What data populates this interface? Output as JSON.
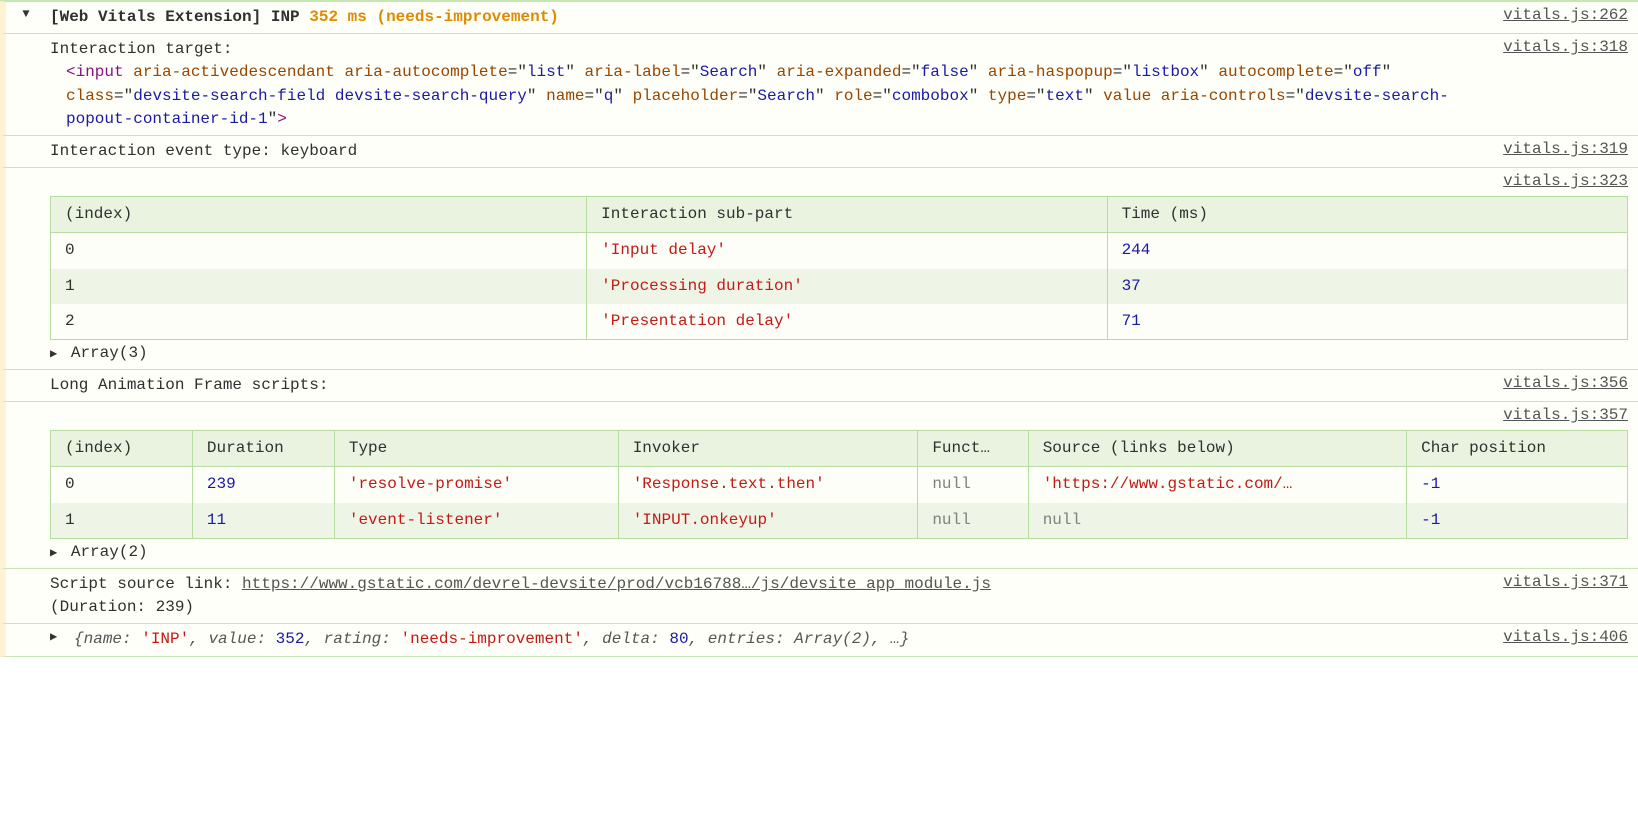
{
  "colors": {
    "bg_row": "#fdfff8",
    "border": "#c6e6b3",
    "left_stripe": "#fff3d6",
    "table_border": "#b6dca0",
    "table_header_bg": "#eaf3e0",
    "table_row_even": "#eef5e6",
    "table_row_odd": "#fcfef7",
    "text": "#303030",
    "link": "#545454",
    "tag": "#881280",
    "attr": "#994500",
    "val": "#1a1aa6",
    "num": "#1a1aa6",
    "str": "#c41a16",
    "null": "#808080",
    "orange": "#e08a00",
    "obj_key": "#565656"
  },
  "header": {
    "prefix": "[Web Vitals Extension] INP",
    "metric_value": "352 ms (needs-improvement)",
    "src": "vitals.js:262"
  },
  "target": {
    "label": "Interaction target:",
    "src": "vitals.js:318",
    "tokens": [
      {
        "t": "tag",
        "v": "<input"
      },
      {
        "t": "sp"
      },
      {
        "t": "attr",
        "v": "aria-activedescendant"
      },
      {
        "t": "sp"
      },
      {
        "t": "attr",
        "v": "aria-autocomplete"
      },
      {
        "t": "eq"
      },
      {
        "t": "q"
      },
      {
        "t": "val",
        "v": "list"
      },
      {
        "t": "q"
      },
      {
        "t": "sp"
      },
      {
        "t": "attr",
        "v": "aria-label"
      },
      {
        "t": "eq"
      },
      {
        "t": "q"
      },
      {
        "t": "val",
        "v": "Search"
      },
      {
        "t": "q"
      },
      {
        "t": "sp"
      },
      {
        "t": "attr",
        "v": "aria-expanded"
      },
      {
        "t": "eq"
      },
      {
        "t": "q"
      },
      {
        "t": "val",
        "v": "false"
      },
      {
        "t": "q"
      },
      {
        "t": "sp"
      },
      {
        "t": "attr",
        "v": "aria-haspopup"
      },
      {
        "t": "eq"
      },
      {
        "t": "q"
      },
      {
        "t": "val",
        "v": "listbox"
      },
      {
        "t": "q"
      },
      {
        "t": "sp"
      },
      {
        "t": "attr",
        "v": "autocomplete"
      },
      {
        "t": "eq"
      },
      {
        "t": "q"
      },
      {
        "t": "val",
        "v": "off"
      },
      {
        "t": "q"
      },
      {
        "t": "sp"
      },
      {
        "t": "attr",
        "v": "class"
      },
      {
        "t": "eq"
      },
      {
        "t": "q"
      },
      {
        "t": "val",
        "v": "devsite-search-field devsite-search-query"
      },
      {
        "t": "q"
      },
      {
        "t": "sp"
      },
      {
        "t": "attr",
        "v": "name"
      },
      {
        "t": "eq"
      },
      {
        "t": "q"
      },
      {
        "t": "val",
        "v": "q"
      },
      {
        "t": "q"
      },
      {
        "t": "sp"
      },
      {
        "t": "attr",
        "v": "placeholder"
      },
      {
        "t": "eq"
      },
      {
        "t": "q"
      },
      {
        "t": "val",
        "v": "Search"
      },
      {
        "t": "q"
      },
      {
        "t": "sp"
      },
      {
        "t": "attr",
        "v": "role"
      },
      {
        "t": "eq"
      },
      {
        "t": "q"
      },
      {
        "t": "val",
        "v": "combobox"
      },
      {
        "t": "q"
      },
      {
        "t": "sp"
      },
      {
        "t": "attr",
        "v": "type"
      },
      {
        "t": "eq"
      },
      {
        "t": "q"
      },
      {
        "t": "val",
        "v": "text"
      },
      {
        "t": "q"
      },
      {
        "t": "sp"
      },
      {
        "t": "attr",
        "v": "value"
      },
      {
        "t": "sp"
      },
      {
        "t": "attr",
        "v": "aria-controls"
      },
      {
        "t": "eq"
      },
      {
        "t": "q"
      },
      {
        "t": "val",
        "v": "devsite-search-popout-container-id-1"
      },
      {
        "t": "q"
      },
      {
        "t": "tag",
        "v": ">"
      }
    ]
  },
  "event_type": {
    "text": "Interaction event type: keyboard",
    "src": "vitals.js:319"
  },
  "table1": {
    "src": "vitals.js:323",
    "columns": [
      "(index)",
      "Interaction sub-part",
      "Time (ms)"
    ],
    "col_widths": [
      "34%",
      "33%",
      "33%"
    ],
    "rows": [
      {
        "index": "0",
        "subpart": "'Input delay'",
        "time": "244"
      },
      {
        "index": "1",
        "subpart": "'Processing duration'",
        "time": "37"
      },
      {
        "index": "2",
        "subpart": "'Presentation delay'",
        "time": "71"
      }
    ],
    "footer": "Array(3)"
  },
  "laf": {
    "label": "Long Animation Frame scripts:",
    "src": "vitals.js:356"
  },
  "table2": {
    "src": "vitals.js:357",
    "columns": [
      "(index)",
      "Duration",
      "Type",
      "Invoker",
      "Funct…",
      "Source (links below)",
      "Char position"
    ],
    "col_widths": [
      "9%",
      "9%",
      "18%",
      "19%",
      "7%",
      "24%",
      "14%"
    ],
    "rows": [
      {
        "index": "0",
        "duration": "239",
        "type": "'resolve-promise'",
        "invoker": "'Response.text.then'",
        "func": "null",
        "source": "'https://www.gstatic.com/…",
        "char": "-1"
      },
      {
        "index": "1",
        "duration": "11",
        "type": "'event-listener'",
        "invoker": "'INPUT.onkeyup'",
        "func": "null",
        "source": "null",
        "char": "-1"
      }
    ],
    "footer": "Array(2)"
  },
  "script_source": {
    "label": "Script source link: ",
    "url_text": "https://www.gstatic.com/devrel-devsite/prod/vcb16788…/js/devsite_app_module.js",
    "duration_line": "(Duration: 239)",
    "src": "vitals.js:371"
  },
  "obj_summary": {
    "items": [
      {
        "k": "name",
        "v": "'INP'",
        "cls": "str"
      },
      {
        "k": "value",
        "v": "352",
        "cls": "num"
      },
      {
        "k": "rating",
        "v": "'needs-improvement'",
        "cls": "str"
      },
      {
        "k": "delta",
        "v": "80",
        "cls": "num"
      },
      {
        "k": "entries",
        "v": "Array(2)",
        "cls": "plain"
      }
    ],
    "ellipsis": ", …",
    "src": "vitals.js:406"
  }
}
